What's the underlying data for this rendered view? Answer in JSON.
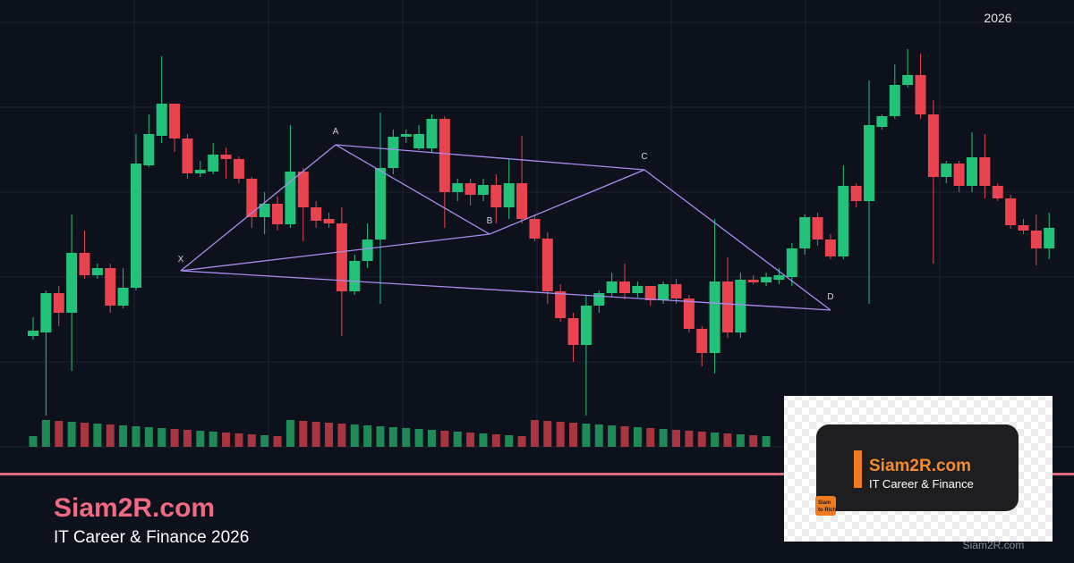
{
  "header": {
    "year": "2026"
  },
  "pattern": {
    "points": [
      "X",
      "A",
      "B",
      "C",
      "D"
    ]
  },
  "footer": {
    "brand": "Siam2R.com",
    "tagline": "IT Career & Finance 2026"
  },
  "badge": {
    "brand": "Siam2R.com",
    "tagline": "IT Career & Finance",
    "logo_line1": "Siam",
    "logo_line2": "to Rich",
    "watermark": "Siam2R.com"
  }
}
